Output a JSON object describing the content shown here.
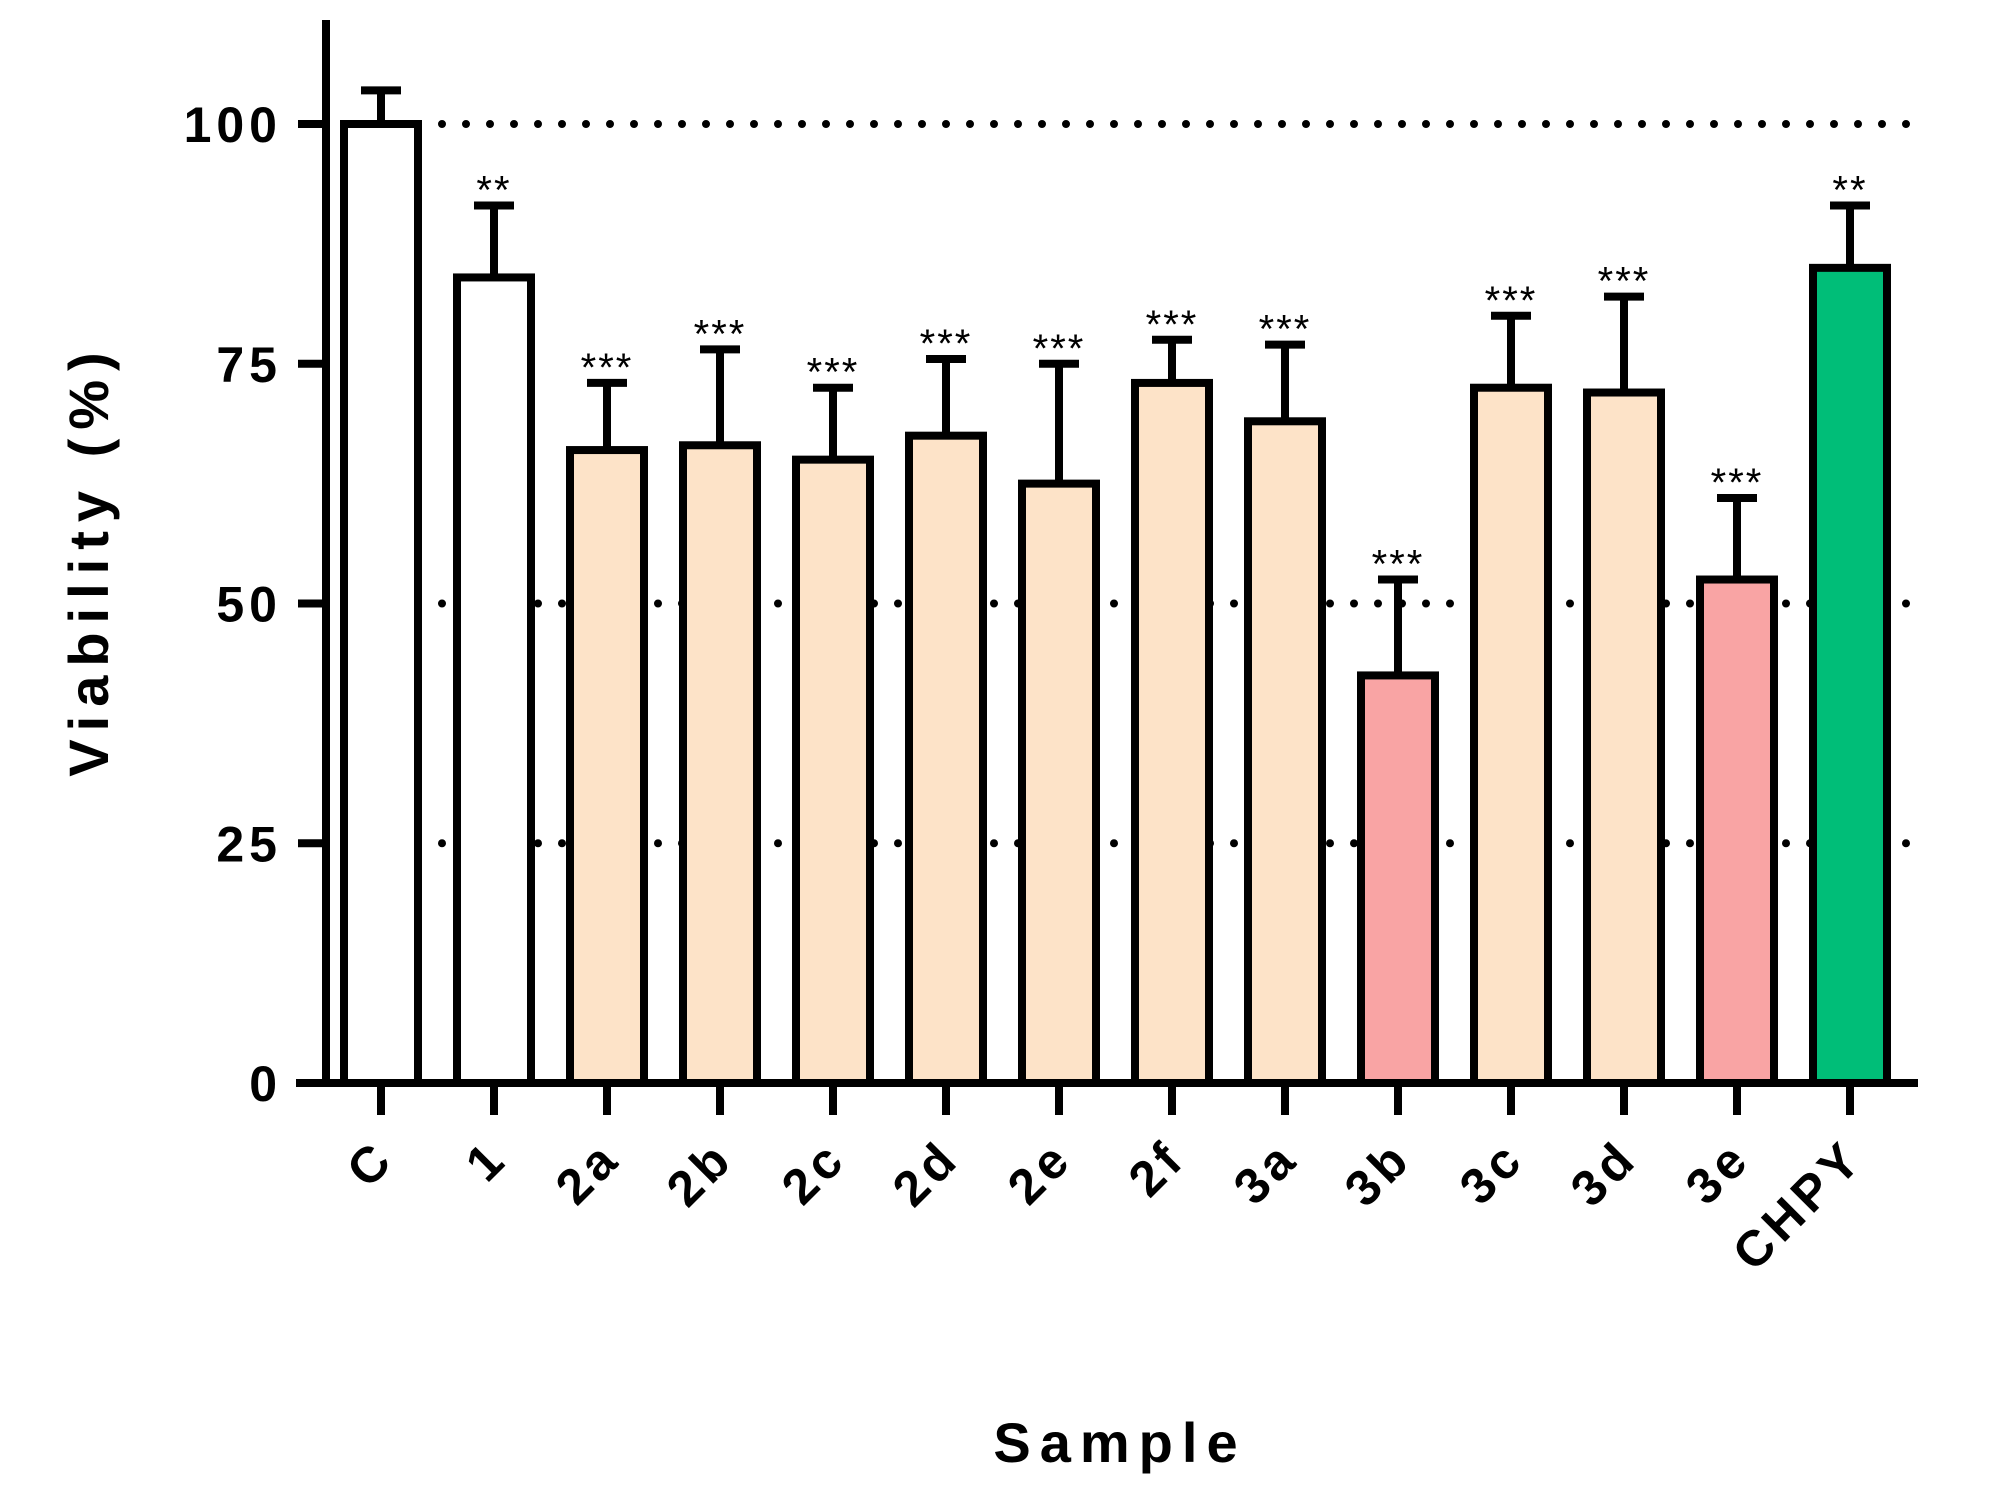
{
  "chart_data": {
    "type": "bar",
    "xlabel": "Sample",
    "ylabel": "Viability (%)",
    "ylim": [
      0,
      110
    ],
    "yticks": [
      0,
      25,
      50,
      75,
      100
    ],
    "reference_lines": [
      25,
      50,
      100
    ],
    "categories": [
      "C",
      "1",
      "2a",
      "2b",
      "2c",
      "2d",
      "2e",
      "2f",
      "3a",
      "3b",
      "3c",
      "3d",
      "3e",
      "CHPY"
    ],
    "values": [
      100,
      84,
      66,
      66.5,
      65,
      67.5,
      62.5,
      73,
      69,
      42.5,
      72.5,
      72,
      52.5,
      85
    ],
    "errors": [
      3.5,
      7.5,
      7,
      10,
      7.5,
      8,
      12.5,
      4.5,
      8,
      10,
      7.5,
      10,
      8.5,
      6.5
    ],
    "significance": [
      "",
      "**",
      "***",
      "***",
      "***",
      "***",
      "***",
      "***",
      "***",
      "***",
      "***",
      "***",
      "***",
      "**"
    ],
    "colors": [
      "#ffffff",
      "#ffffff",
      "#fde3c8",
      "#fde3c8",
      "#fde3c8",
      "#fde3c8",
      "#fde3c8",
      "#fde3c8",
      "#fde3c8",
      "#f9a4a4",
      "#fde3c8",
      "#fde3c8",
      "#f9a4a4",
      "#00be78"
    ],
    "grid": "dotted horizontal at reference values",
    "legend": "none"
  }
}
